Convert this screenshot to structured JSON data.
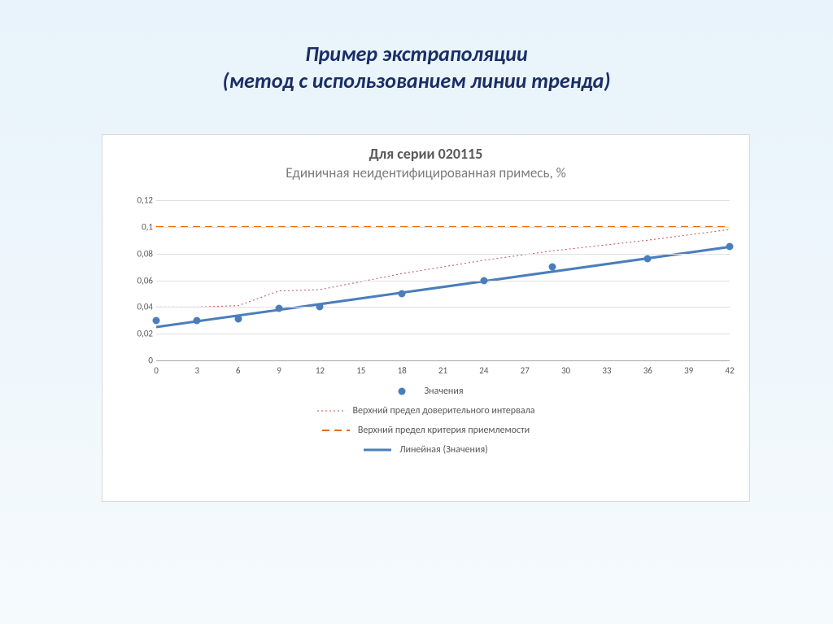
{
  "slide": {
    "title_line1": "Пример экстраполяции",
    "title_line2": "(метод с использованием линии тренда)"
  },
  "chart": {
    "type": "line",
    "title": "Для серии 020115",
    "subtitle": "Единичная неидентифицированная примесь, %",
    "background_color": "#ffffff",
    "grid_color": "#e0e0e0",
    "axis_color": "#a6a6a6",
    "label_color": "#595959",
    "title_fontsize": 18,
    "subtitle_fontsize": 17,
    "tick_fontsize": 11,
    "x": {
      "min": 0,
      "max": 42,
      "ticks": [
        0,
        3,
        6,
        9,
        12,
        15,
        18,
        21,
        24,
        27,
        30,
        33,
        36,
        39,
        42
      ]
    },
    "y": {
      "min": 0,
      "max": 0.12,
      "ticks": [
        0,
        0.02,
        0.04,
        0.06,
        0.08,
        0.1,
        0.12
      ],
      "tick_labels": [
        "0",
        "0,02",
        "0,04",
        "0,06",
        "0,08",
        "0,1",
        "0,12"
      ]
    },
    "series": {
      "values": {
        "label": "Значения",
        "color": "#4a7ebb",
        "marker_style": "circle",
        "marker_size": 9,
        "x": [
          0,
          3,
          6,
          9,
          12,
          18,
          24,
          29,
          36,
          42
        ],
        "y": [
          0.03,
          0.03,
          0.031,
          0.039,
          0.04,
          0.05,
          0.06,
          0.07,
          0.076,
          0.085
        ]
      },
      "upper_ci": {
        "label": "Верхний предел доверительного интервала",
        "color": "#c0504d",
        "line_width": 1,
        "dash": "2,3",
        "x": [
          0,
          3,
          6,
          9,
          12,
          18,
          24,
          29,
          36,
          42
        ],
        "y": [
          0.04,
          0.04,
          0.041,
          0.052,
          0.053,
          0.065,
          0.075,
          0.082,
          0.09,
          0.098
        ]
      },
      "limit": {
        "label": "Верхний предел критерия приемлемости",
        "color": "#e46c0a",
        "line_width": 2,
        "dash": "9,6",
        "value": 0.1
      },
      "trend": {
        "label": "Линейная (Значения)",
        "color": "#4a7ebb",
        "line_width": 3,
        "x0": 0,
        "y0": 0.025,
        "x1": 42,
        "y1": 0.085
      }
    }
  }
}
